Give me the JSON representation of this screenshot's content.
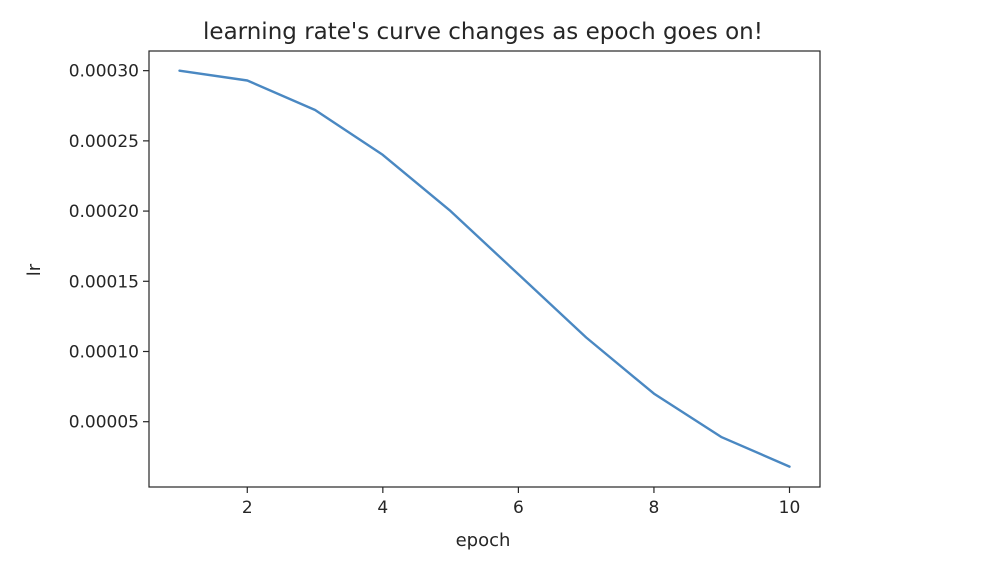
{
  "chart_data": {
    "type": "line",
    "title": "learning rate's curve changes as epoch goes on!",
    "xlabel": "epoch",
    "ylabel": "lr",
    "xlim": [
      0.55,
      10.45
    ],
    "ylim": [
      3.5e-06,
      0.000314
    ],
    "xticks": [
      2,
      4,
      6,
      8,
      10
    ],
    "xtick_labels": [
      "2",
      "4",
      "6",
      "8",
      "10"
    ],
    "yticks": [
      5e-05,
      0.0001,
      0.00015,
      0.0002,
      0.00025,
      0.0003
    ],
    "ytick_labels": [
      "0.00005",
      "0.00010",
      "0.00015",
      "0.00020",
      "0.00025",
      "0.00030"
    ],
    "grid": false,
    "series": [
      {
        "color": "#4a88c2",
        "x": [
          1,
          2,
          3,
          4,
          5,
          6,
          7,
          8,
          9,
          10
        ],
        "y": [
          0.0003,
          0.000293,
          0.000272,
          0.00024,
          0.0002,
          0.000155,
          0.00011,
          7e-05,
          3.9e-05,
          1.8e-05
        ]
      }
    ]
  }
}
